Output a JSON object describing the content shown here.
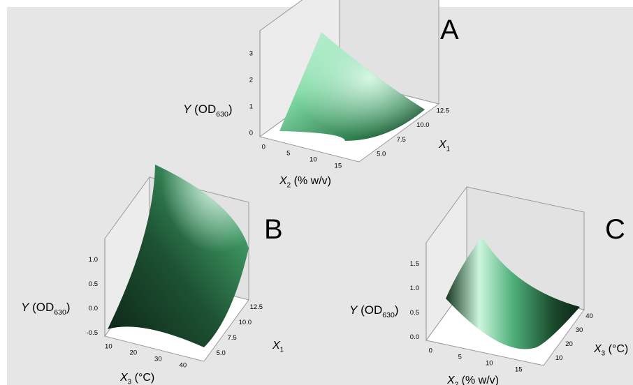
{
  "colors": {
    "background": "#e6e6e6",
    "surface_light": "#b8f0d0",
    "surface_dark": "#0f2a18",
    "axis": "#808080",
    "text": "#000000"
  },
  "chart_data": [
    {
      "panel_label": "A",
      "type": "surface",
      "zlabel": "Y (OD",
      "zlabel_sub": "630",
      "zlabel_close": ")",
      "xlabel": "X",
      "xlabel_sub": "2",
      "xlabel_rest": " (% w/v)",
      "ylabel": "X",
      "ylabel_sub": "1",
      "ylabel_rest": "",
      "x_ticks": [
        "0",
        "5",
        "10",
        "15"
      ],
      "y_ticks": [
        "5.0",
        "7.5",
        "10.0",
        "12.5"
      ],
      "z_ticks": [
        "0",
        "1",
        "2",
        "3"
      ],
      "x_range": [
        0,
        20
      ],
      "y_range": [
        5.0,
        12.5
      ],
      "z_range": [
        0,
        3
      ],
      "grid": false
    },
    {
      "panel_label": "B",
      "type": "surface",
      "zlabel": "Y (OD",
      "zlabel_sub": "630",
      "zlabel_close": ")",
      "xlabel": "X",
      "xlabel_sub": "3",
      "xlabel_rest": " (°C)",
      "ylabel": "X",
      "ylabel_sub": "1",
      "ylabel_rest": "",
      "x_ticks": [
        "10",
        "20",
        "30",
        "40"
      ],
      "y_ticks": [
        "5.0",
        "7.5",
        "10.0",
        "12.5"
      ],
      "z_ticks": [
        "-0.5",
        "0.0",
        "0.5",
        "1.0"
      ],
      "x_range": [
        10,
        45
      ],
      "y_range": [
        5.0,
        12.5
      ],
      "z_range": [
        -0.5,
        1.0
      ],
      "grid": false
    },
    {
      "panel_label": "C",
      "type": "surface",
      "zlabel": "Y (OD",
      "zlabel_sub": "630",
      "zlabel_close": ")",
      "xlabel": "X",
      "xlabel_sub": "2",
      "xlabel_rest": " (% w/v)",
      "ylabel": "X",
      "ylabel_sub": "3",
      "ylabel_rest": " (°C)",
      "x_ticks": [
        "0",
        "5",
        "10",
        "15"
      ],
      "y_ticks": [
        "10",
        "20",
        "30",
        "40"
      ],
      "z_ticks": [
        "0.0",
        "0.5",
        "1.0",
        "1.5"
      ],
      "x_range": [
        0,
        20
      ],
      "y_range": [
        10,
        45
      ],
      "z_range": [
        -0.25,
        1.75
      ],
      "grid": false
    }
  ]
}
